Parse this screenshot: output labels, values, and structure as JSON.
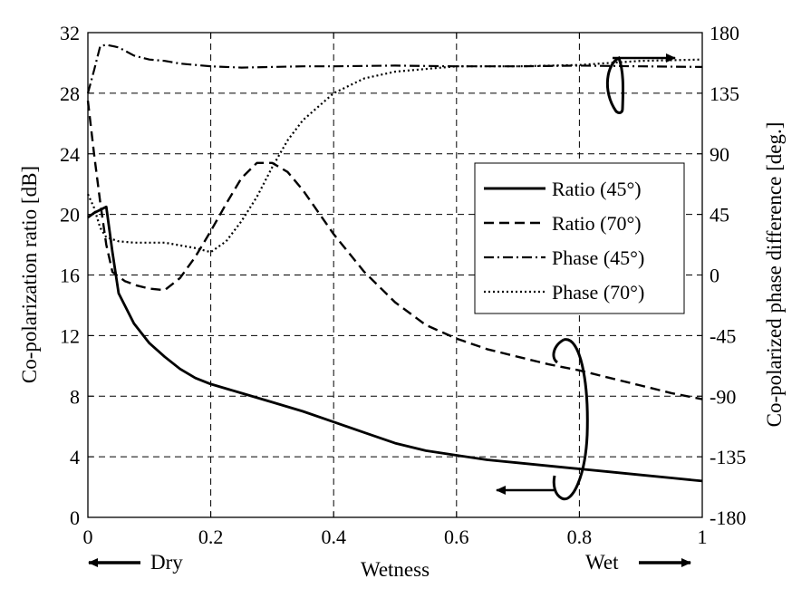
{
  "chart_data": {
    "type": "line",
    "xlabel": "Wetness",
    "ylabel": "Co-polarization ratio [dB]",
    "y2label": "Co-polarized phase difference [deg.]",
    "xlim": [
      0,
      1
    ],
    "ylim": [
      0,
      32
    ],
    "y2lim": [
      -180,
      180
    ],
    "x_ticks": [
      "0",
      "0.2",
      "0.4",
      "0.6",
      "0.8",
      "1"
    ],
    "y_ticks": [
      "0",
      "4",
      "8",
      "12",
      "16",
      "20",
      "24",
      "28",
      "32"
    ],
    "y2_ticks": [
      "-180",
      "-135",
      "-90",
      "-45",
      "0",
      "45",
      "90",
      "135",
      "180"
    ],
    "grid": true,
    "legend_position": "right-middle",
    "annotations": {
      "dry_label": "Dry",
      "wet_label": "Wet"
    },
    "series": [
      {
        "name": "Ratio (45°)",
        "axis": "left",
        "style": "solid",
        "x": [
          0,
          0.01,
          0.02,
          0.03,
          0.04,
          0.05,
          0.075,
          0.1,
          0.125,
          0.15,
          0.175,
          0.2,
          0.25,
          0.3,
          0.35,
          0.4,
          0.45,
          0.5,
          0.55,
          0.6,
          0.65,
          0.7,
          0.75,
          0.8,
          0.85,
          0.9,
          0.95,
          1.0
        ],
        "y": [
          19.8,
          20.1,
          20.3,
          20.5,
          17.5,
          14.8,
          12.8,
          11.5,
          10.6,
          9.8,
          9.2,
          8.8,
          8.2,
          7.6,
          7.0,
          6.3,
          5.6,
          4.9,
          4.4,
          4.1,
          3.8,
          3.6,
          3.4,
          3.2,
          3.0,
          2.8,
          2.6,
          2.4
        ]
      },
      {
        "name": "Ratio (70°)",
        "axis": "left",
        "style": "dashed",
        "x": [
          0,
          0.01,
          0.02,
          0.03,
          0.04,
          0.06,
          0.08,
          0.1,
          0.125,
          0.15,
          0.175,
          0.2,
          0.225,
          0.25,
          0.275,
          0.3,
          0.325,
          0.35,
          0.4,
          0.45,
          0.5,
          0.55,
          0.6,
          0.65,
          0.7,
          0.75,
          0.8,
          0.85,
          0.9,
          0.95,
          1.0
        ],
        "y": [
          27.5,
          24.0,
          20.8,
          18.0,
          16.2,
          15.6,
          15.3,
          15.1,
          15.0,
          15.8,
          17.2,
          18.9,
          20.7,
          22.4,
          23.4,
          23.4,
          22.8,
          21.6,
          18.7,
          16.2,
          14.2,
          12.7,
          11.8,
          11.1,
          10.6,
          10.1,
          9.7,
          9.2,
          8.7,
          8.2,
          7.8
        ]
      },
      {
        "name": "Phase (45°)",
        "axis": "right",
        "style": "dashdot",
        "x": [
          0,
          0.01,
          0.02,
          0.03,
          0.05,
          0.075,
          0.1,
          0.125,
          0.15,
          0.2,
          0.25,
          0.3,
          0.35,
          0.4,
          0.5,
          0.6,
          0.7,
          0.8,
          0.9,
          1.0
        ],
        "y": [
          135,
          152,
          170,
          171,
          169,
          163,
          160,
          159,
          157,
          155,
          154,
          154.5,
          155,
          155,
          155.5,
          155,
          155,
          155.5,
          155,
          154.5
        ]
      },
      {
        "name": "Phase (70°)",
        "axis": "right",
        "style": "dotted",
        "x": [
          0,
          0.01,
          0.02,
          0.03,
          0.05,
          0.075,
          0.1,
          0.125,
          0.15,
          0.175,
          0.2,
          0.225,
          0.25,
          0.275,
          0.3,
          0.325,
          0.35,
          0.4,
          0.45,
          0.5,
          0.55,
          0.6,
          0.7,
          0.8,
          0.9,
          1.0
        ],
        "y": [
          60,
          50,
          35,
          28,
          25,
          24,
          24,
          24,
          22,
          20,
          17,
          25,
          40,
          58,
          80,
          100,
          115,
          135,
          146,
          151,
          153,
          155,
          155,
          156,
          159,
          160
        ]
      }
    ]
  }
}
